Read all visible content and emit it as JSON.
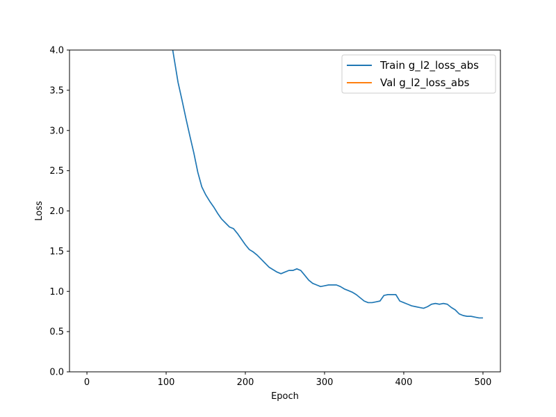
{
  "chart_data": {
    "type": "line",
    "title": "",
    "xlabel": "Epoch",
    "ylabel": "Loss",
    "xlim": [
      -22,
      522
    ],
    "ylim": [
      0.0,
      4.0
    ],
    "xticks": [
      0,
      100,
      200,
      300,
      400,
      500
    ],
    "yticks": [
      0.0,
      0.5,
      1.0,
      1.5,
      2.0,
      2.5,
      3.0,
      3.5,
      4.0
    ],
    "xtick_labels": [
      "0",
      "100",
      "200",
      "300",
      "400",
      "500"
    ],
    "ytick_labels": [
      "0.0",
      "0.5",
      "1.0",
      "1.5",
      "2.0",
      "2.5",
      "3.0",
      "3.5",
      "4.0"
    ],
    "grid": false,
    "legend_position": "upper right",
    "series": [
      {
        "name": "Train g_l2_loss_abs",
        "color": "#1f77b4",
        "x": [
          108,
          110,
          115,
          120,
          125,
          130,
          135,
          140,
          145,
          150,
          155,
          160,
          165,
          170,
          175,
          180,
          185,
          190,
          195,
          200,
          205,
          210,
          215,
          220,
          225,
          230,
          235,
          240,
          245,
          250,
          255,
          260,
          265,
          270,
          275,
          280,
          285,
          290,
          295,
          300,
          305,
          310,
          315,
          320,
          325,
          330,
          335,
          340,
          345,
          350,
          355,
          360,
          365,
          370,
          375,
          380,
          385,
          390,
          395,
          400,
          405,
          410,
          415,
          420,
          425,
          430,
          435,
          440,
          445,
          450,
          455,
          460,
          465,
          470,
          475,
          480,
          485,
          490,
          495,
          500
        ],
        "y": [
          4.02,
          3.9,
          3.6,
          3.38,
          3.15,
          2.93,
          2.72,
          2.48,
          2.3,
          2.2,
          2.12,
          2.05,
          1.97,
          1.9,
          1.85,
          1.8,
          1.78,
          1.72,
          1.65,
          1.58,
          1.52,
          1.49,
          1.45,
          1.4,
          1.35,
          1.3,
          1.27,
          1.24,
          1.22,
          1.24,
          1.26,
          1.26,
          1.28,
          1.26,
          1.2,
          1.14,
          1.1,
          1.08,
          1.06,
          1.07,
          1.08,
          1.08,
          1.08,
          1.06,
          1.03,
          1.01,
          0.99,
          0.96,
          0.92,
          0.88,
          0.86,
          0.86,
          0.87,
          0.88,
          0.95,
          0.96,
          0.96,
          0.96,
          0.88,
          0.86,
          0.84,
          0.82,
          0.81,
          0.8,
          0.79,
          0.81,
          0.84,
          0.85,
          0.84,
          0.85,
          0.84,
          0.8,
          0.77,
          0.72,
          0.7,
          0.69,
          0.69,
          0.68,
          0.67,
          0.67
        ]
      },
      {
        "name": "Val g_l2_loss_abs",
        "color": "#ff7f0e",
        "x": [],
        "y": []
      }
    ]
  }
}
